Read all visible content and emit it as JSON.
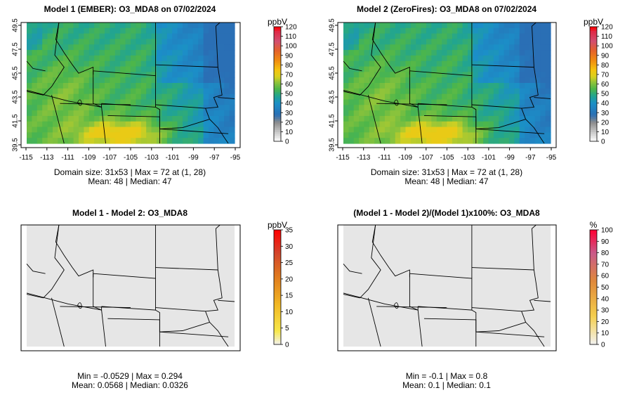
{
  "chart_data": [
    {
      "type": "heatmap",
      "title": "Model 1 (EMBER): O3_MDA8 on 07/02/2024",
      "unit": "ppbV",
      "colorbar_ticks": [
        0,
        10,
        20,
        30,
        40,
        50,
        60,
        70,
        80,
        90,
        100,
        110,
        120
      ],
      "x_ticks": [
        "-115",
        "-113",
        "-111",
        "-109",
        "-107",
        "-105",
        "-103",
        "-101",
        "-99",
        "-97",
        "-95"
      ],
      "y_ticks": [
        "39.5",
        "41.5",
        "43.5",
        "45.5",
        "47.5",
        "49.5"
      ],
      "xlim": [
        -115,
        -95
      ],
      "ylim": [
        39.5,
        49.5
      ],
      "field": "ozone",
      "stats": [
        "Domain size: 31x53 | Max = 72 at (1, 28)",
        "Mean: 48 |  Median: 47"
      ]
    },
    {
      "type": "heatmap",
      "title": "Model 2 (ZeroFires): O3_MDA8 on 07/02/2024",
      "unit": "ppbV",
      "colorbar_ticks": [
        0,
        10,
        20,
        30,
        40,
        50,
        60,
        70,
        80,
        90,
        100,
        110,
        120
      ],
      "x_ticks": [
        "-115",
        "-113",
        "-111",
        "-109",
        "-107",
        "-105",
        "-103",
        "-101",
        "-99",
        "-97",
        "-95"
      ],
      "y_ticks": [
        "39.5",
        "41.5",
        "43.5",
        "45.5",
        "47.5",
        "49.5"
      ],
      "xlim": [
        -115,
        -95
      ],
      "ylim": [
        39.5,
        49.5
      ],
      "field": "ozone",
      "stats": [
        "Domain size: 31x53 | Max = 72 at (1, 28)",
        "Mean: 48 |  Median: 47"
      ]
    },
    {
      "type": "heatmap",
      "title": "Model 1 - Model 2: O3_MDA8",
      "unit": "ppbV",
      "colorbar_ticks": [
        0,
        5,
        10,
        15,
        20,
        25,
        30,
        35
      ],
      "field": "difference",
      "stats": [
        "Min = -0.0529 | Max = 0.294",
        "Mean: 0.0568 |  Median: 0.0326"
      ]
    },
    {
      "type": "heatmap",
      "title": "(Model 1 - Model 2)/(Model 1)x100%: O3_MDA8",
      "unit": "%",
      "colorbar_ticks": [
        0,
        10,
        20,
        30,
        40,
        50,
        60,
        70,
        80,
        90,
        100
      ],
      "field": "difference",
      "stats": [
        "Min = -0.1 | Max = 0.8",
        "Mean: 0.1 |  Median: 0.1"
      ]
    }
  ]
}
